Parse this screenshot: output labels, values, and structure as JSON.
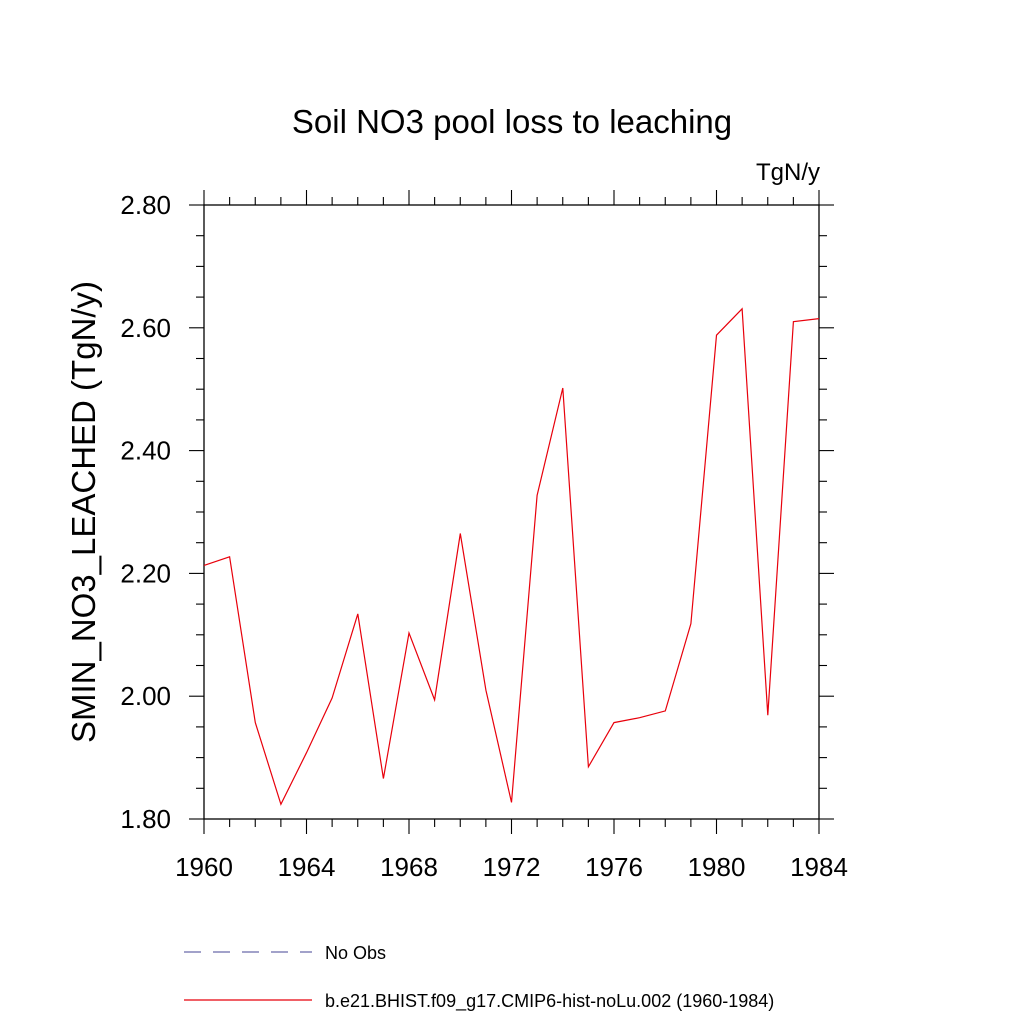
{
  "chart_data": {
    "type": "line",
    "title": "Soil NO3 pool loss to leaching",
    "units_label": "TgN/y",
    "ylabel": "SMIN_NO3_LEACHED  (TgN/y)",
    "xlabel": "",
    "xlim": [
      1960,
      1984
    ],
    "ylim": [
      1.8,
      2.8
    ],
    "x_ticks": [
      1960,
      1964,
      1968,
      1972,
      1976,
      1980,
      1984
    ],
    "x_tick_labels": [
      "1960",
      "1964",
      "1968",
      "1972",
      "1976",
      "1980",
      "1984"
    ],
    "y_ticks": [
      1.8,
      2.0,
      2.2,
      2.4,
      2.6,
      2.8
    ],
    "y_tick_labels": [
      "1.80",
      "2.00",
      "2.20",
      "2.40",
      "2.60",
      "2.80"
    ],
    "grid": false,
    "legend_placement": "bottom",
    "series": [
      {
        "name": "b.e21.BHIST.f09_g17.CMIP6-hist-noLu.002 (1960-1984)",
        "color": "#e8000b",
        "style": "solid",
        "x": [
          1960,
          1961,
          1962,
          1963,
          1964,
          1965,
          1966,
          1967,
          1968,
          1969,
          1970,
          1971,
          1972,
          1973,
          1974,
          1975,
          1976,
          1977,
          1978,
          1979,
          1980,
          1981,
          1982,
          1983,
          1984
        ],
        "values": [
          2.213,
          2.227,
          1.957,
          1.824,
          1.908,
          1.997,
          2.134,
          1.866,
          2.103,
          1.994,
          2.265,
          2.01,
          1.827,
          2.327,
          2.502,
          1.885,
          1.957,
          1.965,
          1.976,
          2.118,
          2.588,
          2.631,
          1.969,
          2.61,
          2.615
        ]
      }
    ],
    "legend": [
      {
        "label": "No Obs",
        "color": "#6a6aaa",
        "style": "dashed"
      },
      {
        "label": "b.e21.BHIST.f09_g17.CMIP6-hist-noLu.002 (1960-1984)",
        "color": "#e8000b",
        "style": "solid"
      }
    ]
  }
}
